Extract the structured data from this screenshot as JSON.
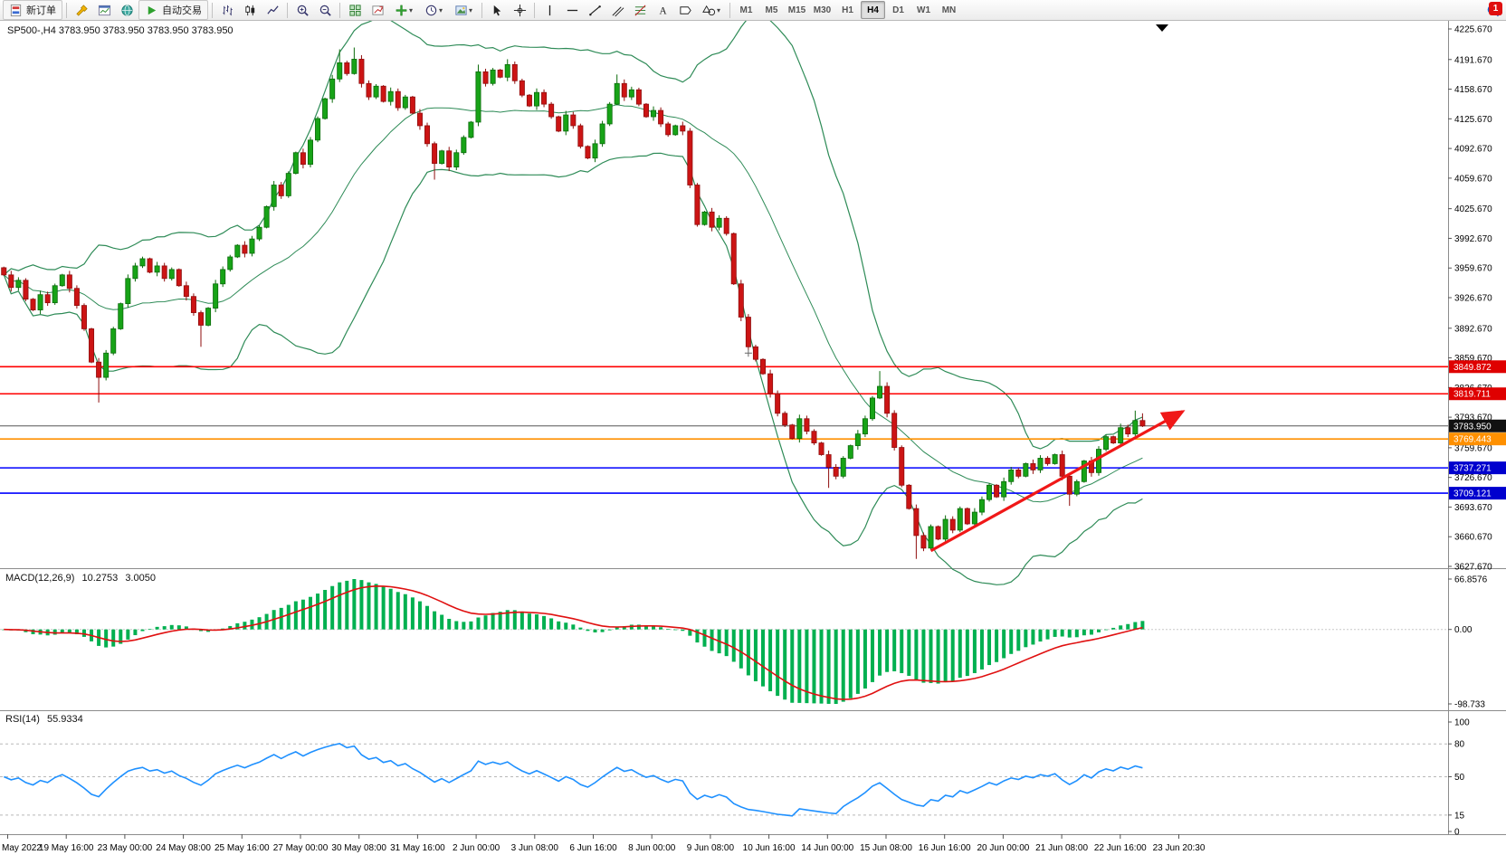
{
  "toolbar": {
    "new_order_label": "新订单",
    "auto_trading_label": "自动交易",
    "timeframes": [
      "M1",
      "M5",
      "M15",
      "M30",
      "H1",
      "H4",
      "D1",
      "W1",
      "MN"
    ],
    "active_timeframe": "H4",
    "notification_count": "1"
  },
  "chart": {
    "symbol_line": "SP500-,H4  3783.950 3783.950 3783.950 3783.950"
  },
  "chart_data": {
    "type": "candlestick",
    "symbol": "SP500-",
    "timeframe": "H4",
    "open_first": 3960,
    "closes": [
      3952,
      3938,
      3946,
      3925,
      3913,
      3930,
      3921,
      3940,
      3952,
      3937,
      3918,
      3892,
      3855,
      3838,
      3865,
      3892,
      3920,
      3948,
      3962,
      3970,
      3955,
      3962,
      3948,
      3958,
      3940,
      3928,
      3910,
      3896,
      3915,
      3942,
      3958,
      3972,
      3985,
      3976,
      3992,
      4005,
      4028,
      4052,
      4040,
      4065,
      4088,
      4075,
      4102,
      4126,
      4148,
      4170,
      4188,
      4176,
      4192,
      4165,
      4150,
      4162,
      4145,
      4156,
      4138,
      4150,
      4132,
      4118,
      4098,
      4076,
      4090,
      4072,
      4088,
      4105,
      4122,
      4178,
      4165,
      4180,
      4172,
      4186,
      4168,
      4152,
      4140,
      4155,
      4142,
      4128,
      4112,
      4130,
      4118,
      4095,
      4082,
      4098,
      4120,
      4142,
      4165,
      4150,
      4158,
      4142,
      4128,
      4135,
      4120,
      4108,
      4118,
      4112,
      4052,
      4008,
      4022,
      4005,
      4015,
      3998,
      3942,
      3905,
      3872,
      3858,
      3842,
      3820,
      3798,
      3785,
      3770,
      3792,
      3778,
      3765,
      3752,
      3738,
      3728,
      3748,
      3762,
      3775,
      3792,
      3815,
      3828,
      3798,
      3760,
      3718,
      3692,
      3662,
      3648,
      3672,
      3658,
      3680,
      3668,
      3692,
      3675,
      3688,
      3702,
      3718,
      3705,
      3722,
      3735,
      3728,
      3742,
      3735,
      3748,
      3742,
      3752,
      3728,
      3708,
      3722,
      3745,
      3732,
      3758,
      3772,
      3765,
      3782,
      3775,
      3790,
      3783.95
    ],
    "wick_overrides": {
      "13": {
        "low": 3810
      },
      "27": {
        "low": 3872
      },
      "46": {
        "high": 4203
      },
      "48": {
        "high": 4205
      },
      "59": {
        "low": 4058
      },
      "65": {
        "high": 4186
      },
      "69": {
        "high": 4192
      },
      "84": {
        "high": 4175
      },
      "113": {
        "low": 3715
      },
      "120": {
        "high": 3845
      },
      "125": {
        "low": 3636
      },
      "146": {
        "low": 3695
      },
      "155": {
        "high": 3801
      },
      "156": {
        "high": 3798
      }
    },
    "style": {
      "up": "#17A317",
      "up_border": "#0B6B0B",
      "down": "#CC1414",
      "down_border": "#8F0E0E",
      "background": "#FFFFFF"
    },
    "price_axis": {
      "labels": [
        "4225.670",
        "4191.670",
        "4158.670",
        "4125.670",
        "4092.670",
        "4059.670",
        "4025.670",
        "3992.670",
        "3959.670",
        "3926.670",
        "3892.670",
        "3859.670",
        "3826.670",
        "3793.670",
        "3759.670",
        "3726.670",
        "3693.670",
        "3660.670",
        "3627.670"
      ]
    },
    "horizontal_lines": [
      {
        "value": "3849.872",
        "price": 3849.872,
        "color": "#FF0000",
        "tag_bg": "#DF0000",
        "lw": 1.6,
        "role": "resistance-line"
      },
      {
        "value": "3819.711",
        "price": 3819.711,
        "color": "#FF0000",
        "tag_bg": "#DF0000",
        "lw": 1.6,
        "role": "resistance-line"
      },
      {
        "value": "3783.950",
        "price": 3783.95,
        "color": "#555555",
        "tag_bg": "#111111",
        "lw": 1,
        "role": "current-price"
      },
      {
        "value": "3769.443",
        "price": 3769.443,
        "color": "#FF9000",
        "tag_bg": "#FF9000",
        "lw": 1.6,
        "role": "support-line"
      },
      {
        "value": "3737.271",
        "price": 3737.271,
        "color": "#0000FF",
        "tag_bg": "#0000CE",
        "lw": 1.6,
        "role": "support-line"
      },
      {
        "value": "3709.121",
        "price": 3709.121,
        "color": "#0000FF",
        "tag_bg": "#0000CE",
        "lw": 1.6,
        "role": "support-line"
      }
    ],
    "trend_arrow": {
      "from": {
        "index": 127,
        "price": 3645
      },
      "to": {
        "index": 161.5,
        "price": 3800
      },
      "color": "#F01818"
    },
    "plus_marker": {
      "index": 102,
      "price": 3865
    },
    "time_axis": [
      "May 2022",
      "19 May 16:00",
      "23 May 00:00",
      "24 May 08:00",
      "25 May 16:00",
      "27 May 00:00",
      "30 May 08:00",
      "31 May 16:00",
      "2 Jun 00:00",
      "3 Jun 08:00",
      "6 Jun 16:00",
      "8 Jun 00:00",
      "9 Jun 08:00",
      "10 Jun 16:00",
      "14 Jun 00:00",
      "15 Jun 08:00",
      "16 Jun 16:00",
      "20 Jun 00:00",
      "21 Jun 08:00",
      "22 Jun 16:00",
      "23 Jun 20:30"
    ],
    "indicators": {
      "bollinger": {
        "period": 20,
        "deviation": 2,
        "color": "#2E8B57"
      },
      "macd": {
        "label": "MACD(12,26,9)",
        "main_value": "10.2753",
        "signal_value": "3.0050",
        "axis_labels": [
          "66.8576",
          "0.00",
          "-98.733"
        ],
        "axis_max": 66.8576,
        "axis_min": -98.733,
        "hist_color": "#00B050",
        "signal_color": "#E01010"
      },
      "rsi": {
        "label": "RSI(14)",
        "value": "55.9334",
        "axis_labels": [
          "100",
          "80",
          "50",
          "15",
          "0"
        ],
        "levels": [
          80,
          50,
          15
        ],
        "color": "#1E90FF"
      }
    }
  }
}
